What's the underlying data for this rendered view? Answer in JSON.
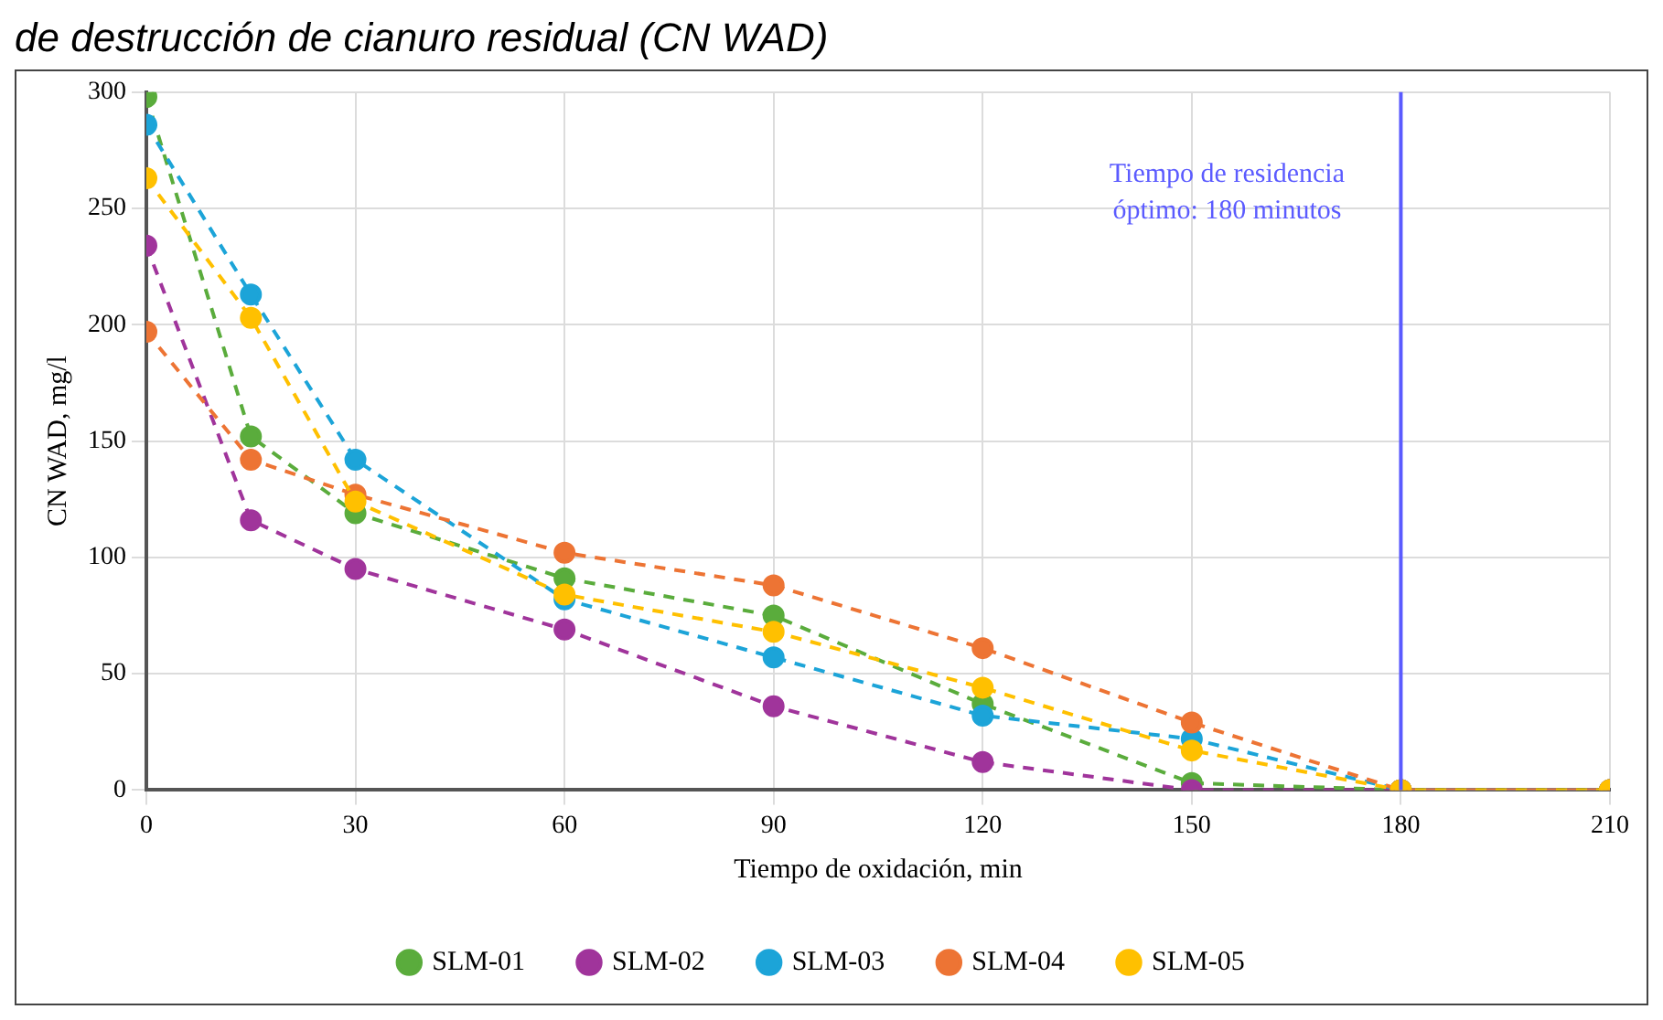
{
  "chart_data": {
    "type": "line",
    "title": "de destrucción de cianuro residual (CN WAD)",
    "xlabel": "Tiempo de oxidación, min",
    "ylabel": "CN WAD, mg/l",
    "x": [
      0,
      15,
      30,
      60,
      90,
      120,
      150,
      180,
      210
    ],
    "series": [
      {
        "name": "SLM-01",
        "color": "#5aac3c",
        "values": [
          298,
          152,
          119,
          91,
          75,
          37,
          3,
          0,
          0
        ]
      },
      {
        "name": "SLM-02",
        "color": "#a0349b",
        "values": [
          234,
          116,
          95,
          69,
          36,
          12,
          0,
          0,
          0
        ]
      },
      {
        "name": "SLM-03",
        "color": "#1ca4d8",
        "values": [
          286,
          213,
          142,
          82,
          57,
          32,
          22,
          0,
          0
        ]
      },
      {
        "name": "SLM-04",
        "color": "#ed7434",
        "values": [
          197,
          142,
          127,
          102,
          88,
          61,
          29,
          0,
          0
        ]
      },
      {
        "name": "SLM-05",
        "color": "#ffc000",
        "values": [
          263,
          203,
          124,
          84,
          68,
          44,
          17,
          0,
          0
        ]
      }
    ],
    "xlim": [
      0,
      210
    ],
    "xticks": [
      0,
      30,
      60,
      90,
      120,
      150,
      180,
      210
    ],
    "ylim": [
      0,
      300
    ],
    "yticks": [
      0,
      50,
      100,
      150,
      200,
      250,
      300
    ],
    "ref_lines": [
      {
        "axis": "x",
        "value": 180,
        "label": "Tiempo de residencia óptimo: 180 minutos",
        "color": "#5b5bff"
      }
    ],
    "grid": true,
    "legend": "bottom",
    "marker": "circle",
    "line_style": "dashed"
  }
}
